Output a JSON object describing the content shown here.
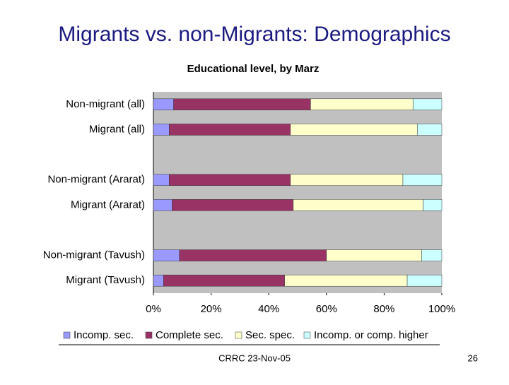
{
  "slide": {
    "title": "Migrants vs. non-Migrants: Demographics",
    "footer": "CRRC 23-Nov-05",
    "page": "26"
  },
  "chart_data": {
    "type": "stacked-bar-horizontal",
    "title": "Educational level, by Marz",
    "categories": [
      "Non-migrant (all)",
      "Migrant (all)",
      null,
      "Non-migrant (Ararat)",
      "Migrant (Ararat)",
      null,
      "Non-migrant (Tavush)",
      "Migrant (Tavush)"
    ],
    "series": [
      {
        "name": "Incomp. sec.",
        "color": "#9999ff",
        "values": [
          7,
          5.5,
          null,
          5.5,
          6.5,
          null,
          9,
          3.5
        ]
      },
      {
        "name": "Complete sec.",
        "color": "#993366",
        "values": [
          47.5,
          42,
          null,
          42,
          42,
          null,
          51,
          42
        ]
      },
      {
        "name": "Sec. spec.",
        "color": "#ffffcc",
        "values": [
          35.5,
          44,
          null,
          39,
          45,
          null,
          33,
          42.5
        ]
      },
      {
        "name": "Incomp. or comp. higher",
        "color": "#ccffff",
        "values": [
          10,
          8.5,
          null,
          13.5,
          6.5,
          null,
          7,
          12
        ]
      }
    ],
    "xlim": [
      0,
      100
    ],
    "xticks": [
      {
        "value": 0,
        "label": "0%"
      },
      {
        "value": 20,
        "label": "20%"
      },
      {
        "value": 40,
        "label": "40%"
      },
      {
        "value": 60,
        "label": "60%"
      },
      {
        "value": 80,
        "label": "80%"
      },
      {
        "value": 100,
        "label": "100%"
      }
    ],
    "legend": "bottom"
  }
}
